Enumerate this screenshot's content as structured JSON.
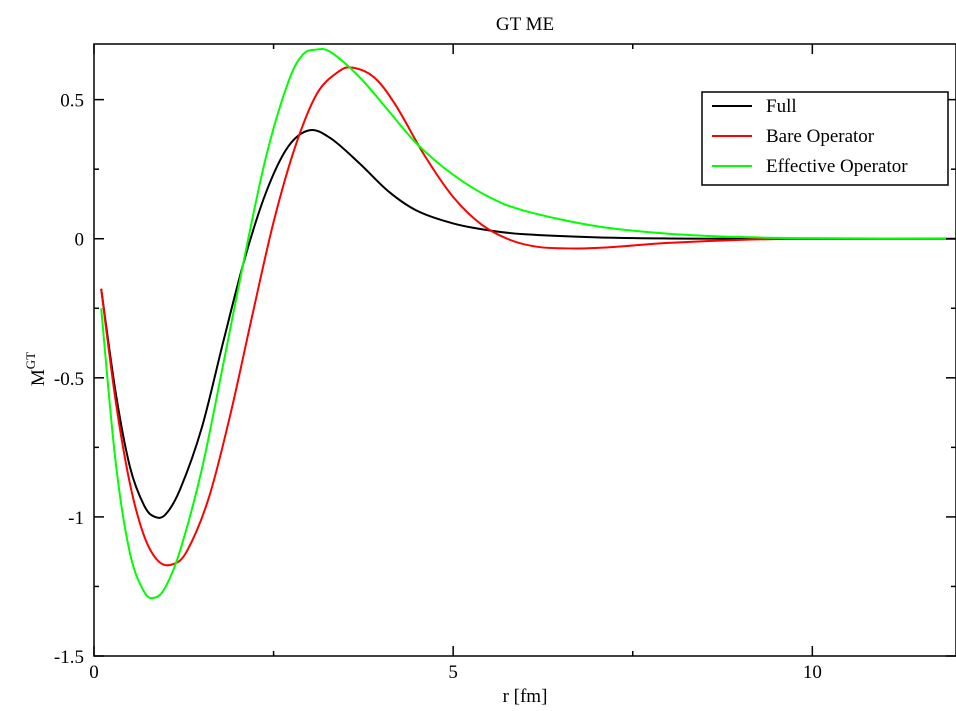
{
  "chart_data": {
    "type": "line",
    "title": "GT ME",
    "xlabel": "r [fm]",
    "ylabel": {
      "base": "M",
      "sup": "GT"
    },
    "xlim": [
      0,
      12
    ],
    "ylim": [
      -1.5,
      0.7
    ],
    "xticks": [
      {
        "value": 0,
        "label": "0"
      },
      {
        "value": 5,
        "label": "5"
      },
      {
        "value": 10,
        "label": "10"
      }
    ],
    "yticks": [
      {
        "value": 0.5,
        "label": "0.5"
      },
      {
        "value": 0,
        "label": "0"
      },
      {
        "value": -0.5,
        "label": "-0.5"
      },
      {
        "value": -1,
        "label": "-1"
      },
      {
        "value": -1.5,
        "label": "-1.5"
      }
    ],
    "x_minor_step": 2.5,
    "y_minor_step": 0.25,
    "grid": false,
    "legend_position": "top-right",
    "series": [
      {
        "name": "Full",
        "color": "#000000",
        "points": [
          [
            0.1,
            -0.18
          ],
          [
            0.3,
            -0.55
          ],
          [
            0.5,
            -0.82
          ],
          [
            0.7,
            -0.96
          ],
          [
            0.85,
            -1.0
          ],
          [
            1.0,
            -0.99
          ],
          [
            1.2,
            -0.9
          ],
          [
            1.5,
            -0.68
          ],
          [
            1.8,
            -0.37
          ],
          [
            2.1,
            -0.07
          ],
          [
            2.4,
            0.17
          ],
          [
            2.7,
            0.33
          ],
          [
            3.0,
            0.39
          ],
          [
            3.3,
            0.36
          ],
          [
            3.7,
            0.27
          ],
          [
            4.1,
            0.17
          ],
          [
            4.5,
            0.1
          ],
          [
            5.0,
            0.055
          ],
          [
            5.5,
            0.03
          ],
          [
            6.0,
            0.016
          ],
          [
            7.0,
            0.005
          ],
          [
            8.0,
            0.001
          ],
          [
            9.0,
            0.0
          ],
          [
            12.0,
            0.0
          ]
        ]
      },
      {
        "name": "Bare Operator",
        "color": "#ff0000",
        "points": [
          [
            0.1,
            -0.18
          ],
          [
            0.3,
            -0.58
          ],
          [
            0.5,
            -0.88
          ],
          [
            0.7,
            -1.07
          ],
          [
            0.9,
            -1.16
          ],
          [
            1.1,
            -1.17
          ],
          [
            1.3,
            -1.12
          ],
          [
            1.6,
            -0.93
          ],
          [
            1.9,
            -0.63
          ],
          [
            2.2,
            -0.28
          ],
          [
            2.5,
            0.06
          ],
          [
            2.8,
            0.33
          ],
          [
            3.1,
            0.52
          ],
          [
            3.4,
            0.6
          ],
          [
            3.6,
            0.615
          ],
          [
            3.9,
            0.58
          ],
          [
            4.2,
            0.48
          ],
          [
            4.6,
            0.3
          ],
          [
            5.0,
            0.15
          ],
          [
            5.4,
            0.05
          ],
          [
            5.8,
            -0.005
          ],
          [
            6.2,
            -0.03
          ],
          [
            6.7,
            -0.035
          ],
          [
            7.2,
            -0.03
          ],
          [
            8.0,
            -0.015
          ],
          [
            9.0,
            -0.004
          ],
          [
            10.0,
            0.0
          ],
          [
            12.0,
            0.0
          ]
        ]
      },
      {
        "name": "Effective Operator",
        "color": "#00ff00",
        "points": [
          [
            0.1,
            -0.25
          ],
          [
            0.3,
            -0.8
          ],
          [
            0.5,
            -1.13
          ],
          [
            0.7,
            -1.27
          ],
          [
            0.85,
            -1.29
          ],
          [
            1.0,
            -1.25
          ],
          [
            1.2,
            -1.12
          ],
          [
            1.5,
            -0.83
          ],
          [
            1.8,
            -0.45
          ],
          [
            2.1,
            -0.06
          ],
          [
            2.4,
            0.3
          ],
          [
            2.7,
            0.56
          ],
          [
            2.9,
            0.66
          ],
          [
            3.1,
            0.68
          ],
          [
            3.3,
            0.67
          ],
          [
            3.7,
            0.58
          ],
          [
            4.1,
            0.46
          ],
          [
            4.5,
            0.34
          ],
          [
            5.0,
            0.23
          ],
          [
            5.5,
            0.15
          ],
          [
            6.0,
            0.1
          ],
          [
            7.0,
            0.045
          ],
          [
            8.0,
            0.018
          ],
          [
            9.0,
            0.006
          ],
          [
            10.0,
            0.002
          ],
          [
            12.0,
            0.0
          ]
        ]
      }
    ]
  }
}
